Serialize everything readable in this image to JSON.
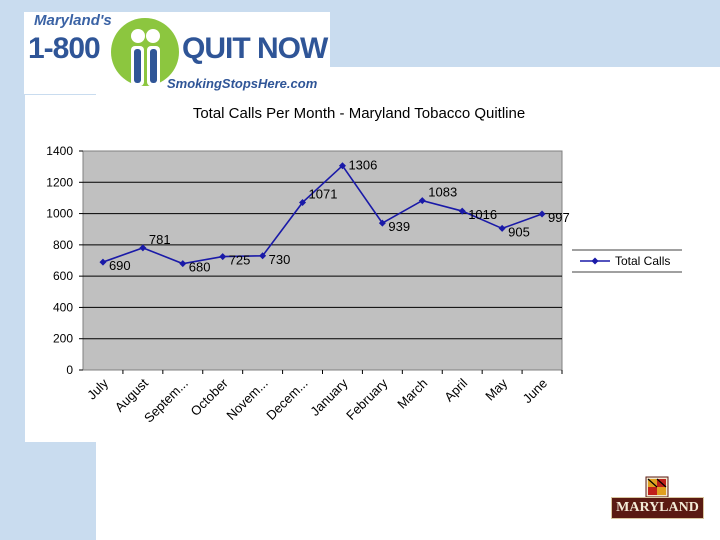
{
  "logo": {
    "line1": "Maryland's",
    "number": "1-800",
    "quit": "QUIT NOW",
    "website": "SmokingStopsHere.com"
  },
  "footer_logo": {
    "text": "MARYLAND"
  },
  "chart_data": {
    "type": "line",
    "title": "Total Calls Per Month - Maryland Tobacco Quitline",
    "categories": [
      "July",
      "August",
      "Septem...",
      "October",
      "Novem...",
      "Decem...",
      "January",
      "February",
      "March",
      "April",
      "May",
      "June"
    ],
    "series": [
      {
        "name": "Total Calls",
        "values": [
          690,
          781,
          680,
          725,
          730,
          1071,
          1306,
          939,
          1083,
          1016,
          905,
          997
        ],
        "color": "#1a1aa8"
      }
    ],
    "data_labels": [
      "690",
      "781",
      "680",
      "725",
      "730",
      "1071",
      "1306",
      "939",
      "1083",
      "1016",
      "905",
      "997"
    ],
    "yticks": [
      "0",
      "200",
      "400",
      "600",
      "800",
      "1000",
      "1200",
      "1400"
    ],
    "ylim": [
      0,
      1400
    ],
    "grid": true,
    "legend_position": "right",
    "plot_background": "#c0c0c0",
    "xlabel": "",
    "ylabel": ""
  }
}
